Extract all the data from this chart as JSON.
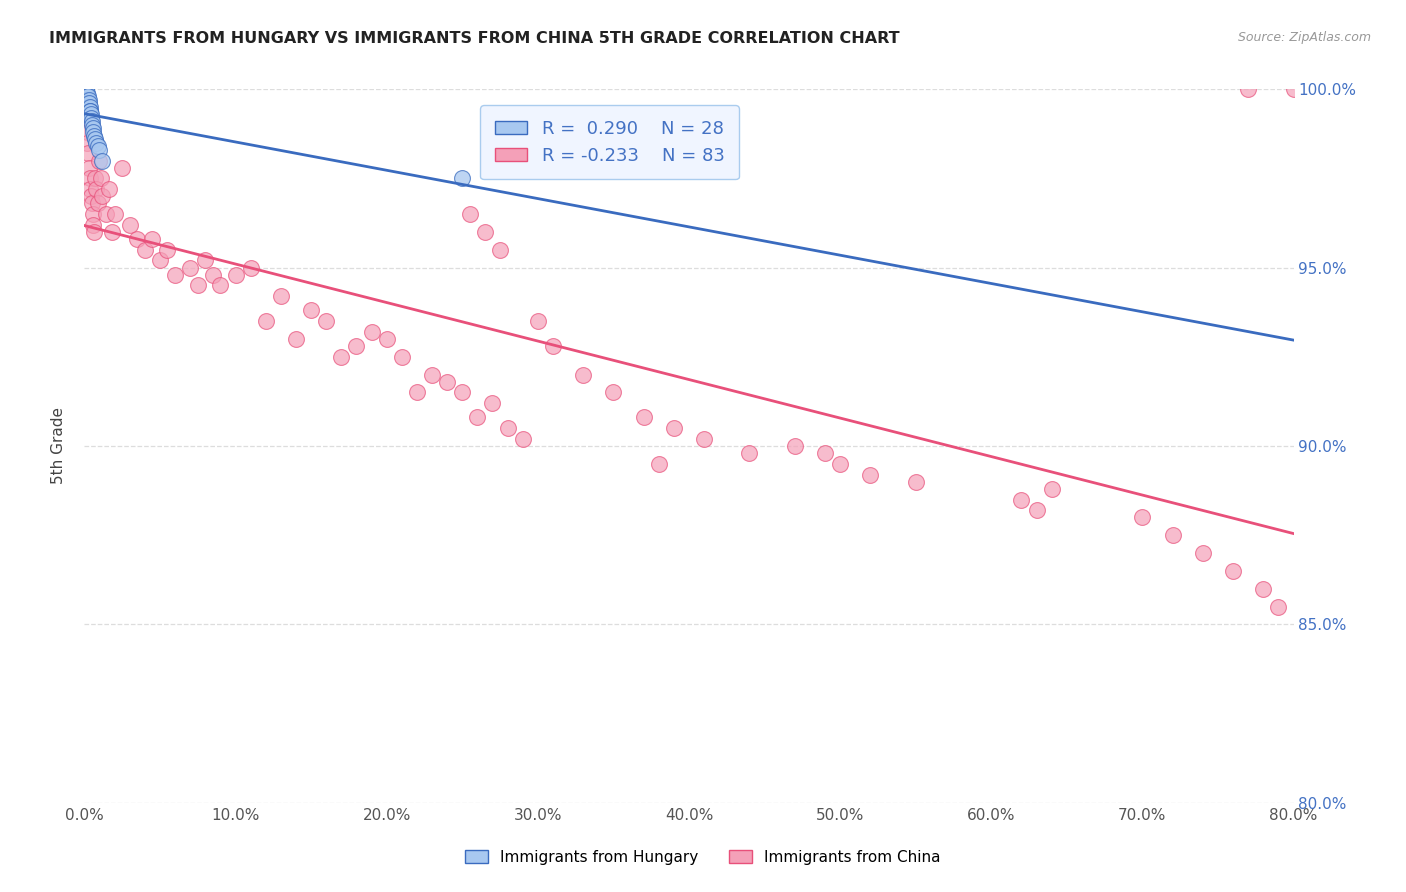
{
  "title": "IMMIGRANTS FROM HUNGARY VS IMMIGRANTS FROM CHINA 5TH GRADE CORRELATION CHART",
  "source": "Source: ZipAtlas.com",
  "ylabel": "5th Grade",
  "xlim": [
    0.0,
    80.0
  ],
  "ylim": [
    80.0,
    100.0
  ],
  "xticks": [
    0.0,
    10.0,
    20.0,
    30.0,
    40.0,
    50.0,
    60.0,
    70.0,
    80.0
  ],
  "yticks": [
    80.0,
    85.0,
    90.0,
    95.0,
    100.0
  ],
  "ytick_labels": [
    "80.0%",
    "85.0%",
    "90.0%",
    "95.0%",
    "100.0%"
  ],
  "xtick_labels": [
    "0.0%",
    "10.0%",
    "20.0%",
    "30.0%",
    "40.0%",
    "50.0%",
    "60.0%",
    "70.0%",
    "80.0%"
  ],
  "hungary_R": 0.29,
  "hungary_N": 28,
  "china_R": -0.233,
  "china_N": 83,
  "hungary_color": "#A8C8F0",
  "china_color": "#F4A0B8",
  "hungary_line_color": "#3A6BBF",
  "china_line_color": "#E8507A",
  "background_color": "#FFFFFF",
  "grid_color": "#DDDDDD",
  "right_axis_color": "#4472C4",
  "hungary_x": [
    0.05,
    0.08,
    0.1,
    0.12,
    0.15,
    0.18,
    0.2,
    0.22,
    0.25,
    0.28,
    0.3,
    0.32,
    0.35,
    0.38,
    0.4,
    0.42,
    0.45,
    0.48,
    0.5,
    0.55,
    0.6,
    0.65,
    0.7,
    0.8,
    0.9,
    1.0,
    1.2,
    25.0
  ],
  "hungary_y": [
    100.0,
    99.9,
    100.0,
    99.8,
    99.9,
    99.8,
    99.7,
    99.8,
    99.6,
    99.7,
    99.5,
    99.6,
    99.5,
    99.4,
    99.4,
    99.3,
    99.2,
    99.1,
    99.0,
    98.9,
    98.8,
    98.7,
    98.6,
    98.5,
    98.4,
    98.3,
    98.0,
    97.5
  ],
  "china_x": [
    0.1,
    0.15,
    0.2,
    0.25,
    0.3,
    0.35,
    0.4,
    0.45,
    0.5,
    0.55,
    0.6,
    0.65,
    0.7,
    0.8,
    0.9,
    1.0,
    1.1,
    1.2,
    1.4,
    1.6,
    1.8,
    2.0,
    2.5,
    3.0,
    3.5,
    4.0,
    4.5,
    5.0,
    5.5,
    6.0,
    7.0,
    7.5,
    8.0,
    8.5,
    9.0,
    10.0,
    11.0,
    12.0,
    13.0,
    14.0,
    15.0,
    16.0,
    17.0,
    18.0,
    19.0,
    20.0,
    21.0,
    22.0,
    23.0,
    24.0,
    25.0,
    26.0,
    27.0,
    28.0,
    29.0,
    30.0,
    31.0,
    33.0,
    35.0,
    37.0,
    39.0,
    41.0,
    44.0,
    47.0,
    50.0,
    52.0,
    55.0,
    62.0,
    64.0,
    70.0,
    72.0,
    74.0,
    76.0,
    78.0,
    79.0,
    80.0,
    25.5,
    26.5,
    27.5,
    38.0,
    49.0,
    63.0,
    77.0
  ],
  "china_y": [
    99.2,
    98.8,
    98.5,
    98.2,
    97.8,
    97.5,
    97.2,
    97.0,
    96.8,
    96.5,
    96.2,
    96.0,
    97.5,
    97.2,
    96.8,
    98.0,
    97.5,
    97.0,
    96.5,
    97.2,
    96.0,
    96.5,
    97.8,
    96.2,
    95.8,
    95.5,
    95.8,
    95.2,
    95.5,
    94.8,
    95.0,
    94.5,
    95.2,
    94.8,
    94.5,
    94.8,
    95.0,
    93.5,
    94.2,
    93.0,
    93.8,
    93.5,
    92.5,
    92.8,
    93.2,
    93.0,
    92.5,
    91.5,
    92.0,
    91.8,
    91.5,
    90.8,
    91.2,
    90.5,
    90.2,
    93.5,
    92.8,
    92.0,
    91.5,
    90.8,
    90.5,
    90.2,
    89.8,
    90.0,
    89.5,
    89.2,
    89.0,
    88.5,
    88.8,
    88.0,
    87.5,
    87.0,
    86.5,
    86.0,
    85.5,
    100.0,
    96.5,
    96.0,
    95.5,
    89.5,
    89.8,
    88.2,
    100.0
  ]
}
